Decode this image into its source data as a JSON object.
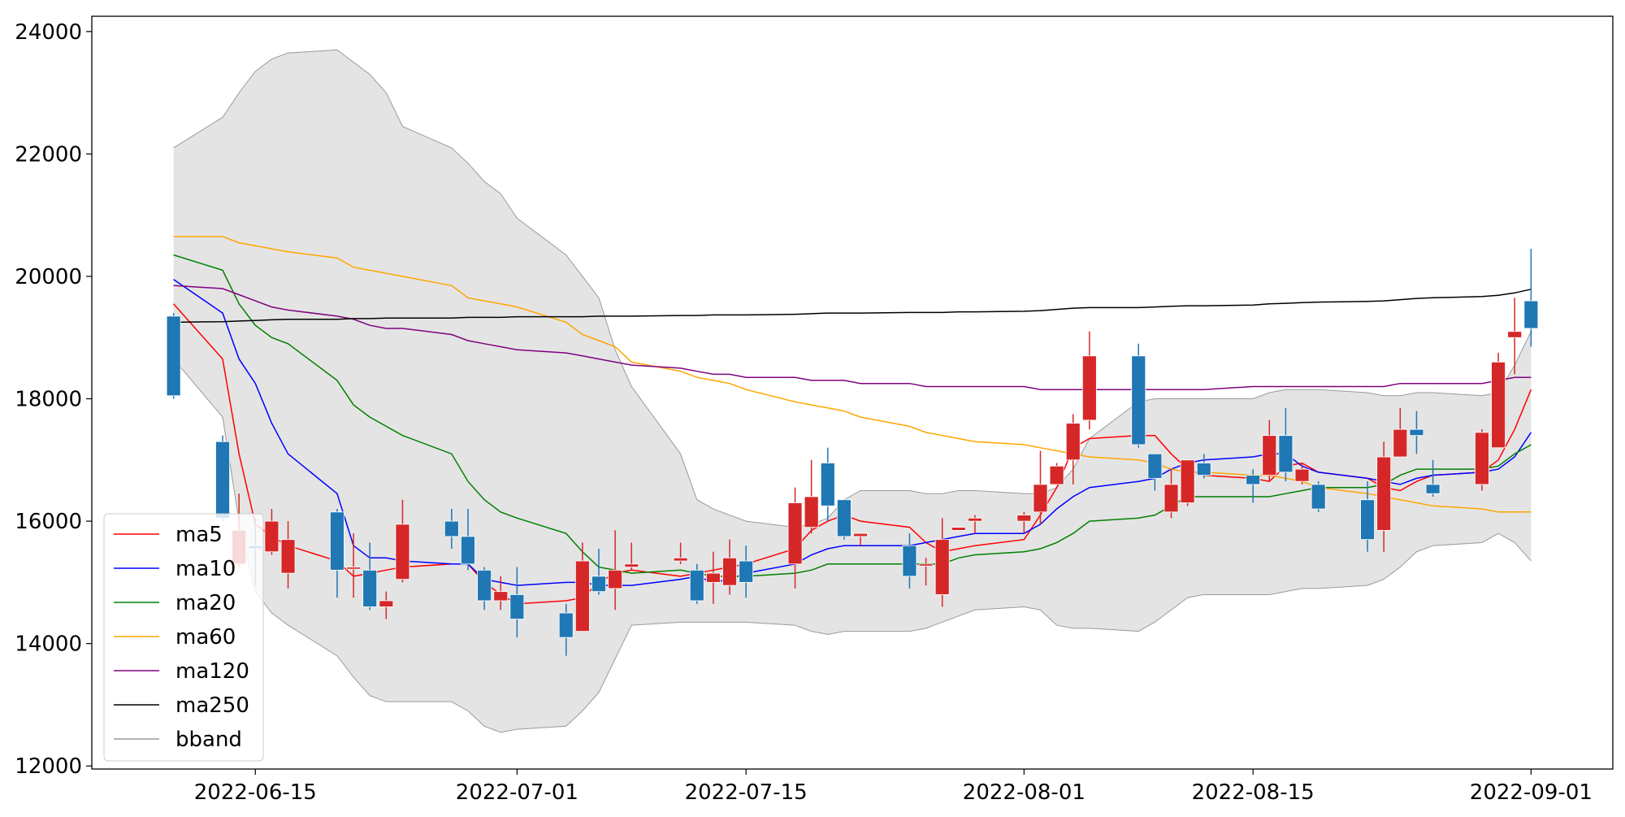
{
  "chart_data": {
    "type": "candlestick",
    "ylim": [
      11950,
      24250
    ],
    "y_ticks": [
      12000,
      14000,
      16000,
      18000,
      20000,
      22000,
      24000
    ],
    "x_ticks": [
      {
        "date": "2022-06-15",
        "label": "2022-06-15"
      },
      {
        "date": "2022-07-01",
        "label": "2022-07-01"
      },
      {
        "date": "2022-07-15",
        "label": "2022-07-15"
      },
      {
        "date": "2022-08-01",
        "label": "2022-08-01"
      },
      {
        "date": "2022-08-15",
        "label": "2022-08-15"
      },
      {
        "date": "2022-09-01",
        "label": "2022-09-01"
      }
    ],
    "x_range": [
      "2022-06-05",
      "2022-09-06"
    ],
    "grid": false,
    "legend_position": "lower-left",
    "colors": {
      "up": "#d62728",
      "down": "#1f77b4",
      "band_fill": "#e4e4e4",
      "band_edge": "#9a9a9a"
    },
    "dates": [
      "2022-06-10",
      "2022-06-13",
      "2022-06-14",
      "2022-06-15",
      "2022-06-16",
      "2022-06-17",
      "2022-06-20",
      "2022-06-21",
      "2022-06-22",
      "2022-06-23",
      "2022-06-24",
      "2022-06-27",
      "2022-06-28",
      "2022-06-29",
      "2022-06-30",
      "2022-07-01",
      "2022-07-04",
      "2022-07-05",
      "2022-07-06",
      "2022-07-07",
      "2022-07-08",
      "2022-07-11",
      "2022-07-12",
      "2022-07-13",
      "2022-07-14",
      "2022-07-15",
      "2022-07-18",
      "2022-07-19",
      "2022-07-20",
      "2022-07-21",
      "2022-07-22",
      "2022-07-25",
      "2022-07-26",
      "2022-07-27",
      "2022-07-28",
      "2022-07-29",
      "2022-08-01",
      "2022-08-02",
      "2022-08-03",
      "2022-08-04",
      "2022-08-05",
      "2022-08-08",
      "2022-08-09",
      "2022-08-10",
      "2022-08-11",
      "2022-08-12",
      "2022-08-15",
      "2022-08-16",
      "2022-08-17",
      "2022-08-18",
      "2022-08-19",
      "2022-08-22",
      "2022-08-23",
      "2022-08-24",
      "2022-08-25",
      "2022-08-26",
      "2022-08-29",
      "2022-08-30",
      "2022-08-31",
      "2022-09-01"
    ],
    "ohlc": [
      [
        19350,
        19400,
        18000,
        18050
      ],
      [
        17300,
        17400,
        16000,
        16050
      ],
      [
        15300,
        16450,
        15250,
        15850
      ],
      [
        15600,
        16050,
        14950,
        15550
      ],
      [
        15500,
        16200,
        15450,
        16000
      ],
      [
        15150,
        16000,
        14900,
        15700
      ],
      [
        16150,
        16200,
        14750,
        15200
      ],
      [
        15250,
        15800,
        14750,
        15250
      ],
      [
        15200,
        15650,
        14550,
        14600
      ],
      [
        14600,
        14850,
        14400,
        14700
      ],
      [
        15050,
        16350,
        15000,
        15950
      ],
      [
        16000,
        16200,
        15550,
        15750
      ],
      [
        15750,
        16200,
        15200,
        15300
      ],
      [
        15200,
        15250,
        14550,
        14700
      ],
      [
        14700,
        15100,
        14550,
        14850
      ],
      [
        14800,
        15250,
        14100,
        14400
      ],
      [
        14500,
        14650,
        13800,
        14100
      ],
      [
        14200,
        15650,
        14200,
        15350
      ],
      [
        15100,
        15550,
        14800,
        14850
      ],
      [
        14900,
        15850,
        14550,
        15200
      ],
      [
        15250,
        15650,
        15200,
        15300
      ],
      [
        15350,
        15650,
        15300,
        15400
      ],
      [
        15200,
        15300,
        14650,
        14700
      ],
      [
        15000,
        15500,
        14650,
        15150
      ],
      [
        14950,
        15700,
        14800,
        15400
      ],
      [
        15350,
        15600,
        14750,
        15000
      ],
      [
        15300,
        16550,
        14900,
        16300
      ],
      [
        15900,
        17000,
        15800,
        16400
      ],
      [
        16950,
        17200,
        16000,
        16250
      ],
      [
        16350,
        16350,
        15700,
        15750
      ],
      [
        15750,
        15700,
        15600,
        15800
      ],
      [
        15600,
        15800,
        14900,
        15100
      ],
      [
        15300,
        15400,
        14950,
        15300
      ],
      [
        14800,
        16050,
        14600,
        15700
      ],
      [
        15850,
        15900,
        15850,
        15900
      ],
      [
        16000,
        16100,
        15800,
        16050
      ],
      [
        16000,
        16150,
        15800,
        16100
      ],
      [
        16150,
        17150,
        15950,
        16600
      ],
      [
        16600,
        16950,
        16600,
        16900
      ],
      [
        17000,
        17750,
        16600,
        17600
      ],
      [
        17650,
        19100,
        17500,
        18700
      ],
      [
        18700,
        18900,
        17200,
        17250
      ],
      [
        17100,
        17100,
        16500,
        16700
      ],
      [
        16150,
        16850,
        16050,
        16600
      ],
      [
        16300,
        17000,
        16250,
        17000
      ],
      [
        16950,
        17100,
        16700,
        16750
      ],
      [
        16750,
        16850,
        16300,
        16600
      ],
      [
        16750,
        17650,
        16650,
        17400
      ],
      [
        17400,
        17850,
        16650,
        16800
      ],
      [
        16650,
        16950,
        16600,
        16850
      ],
      [
        16600,
        16650,
        16150,
        16200
      ],
      [
        16350,
        16650,
        15500,
        15700
      ],
      [
        15850,
        17300,
        15500,
        17050
      ],
      [
        17050,
        17850,
        17050,
        17500
      ],
      [
        17500,
        17800,
        17100,
        17400
      ],
      [
        16600,
        17000,
        16400,
        16450
      ],
      [
        16600,
        17500,
        16500,
        17450
      ],
      [
        17200,
        18750,
        17200,
        18600
      ],
      [
        19000,
        19650,
        18400,
        19100
      ],
      [
        19600,
        20450,
        18850,
        19150
      ]
    ],
    "series": [
      {
        "name": "ma5",
        "color": "#ff0000",
        "values": [
          19550,
          18650,
          17100,
          15950,
          15750,
          15600,
          15350,
          15100,
          15150,
          15200,
          15250,
          15300,
          15300,
          15000,
          14800,
          14650,
          14700,
          14750,
          15000,
          15150,
          15200,
          15100,
          15150,
          15200,
          15250,
          15300,
          15550,
          15850,
          16000,
          16100,
          16000,
          15900,
          15650,
          15500,
          15550,
          15600,
          15700,
          16100,
          16550,
          17200,
          17350,
          17400,
          17400,
          17100,
          16850,
          16750,
          16700,
          16650,
          16900,
          16950,
          16800,
          16700,
          16550,
          16500,
          16650,
          16750,
          16800,
          17000,
          17500,
          18150
        ]
      },
      {
        "name": "ma10",
        "color": "#0000ff",
        "values": [
          19950,
          19400,
          18650,
          18250,
          17600,
          17100,
          16450,
          15600,
          15400,
          15400,
          15350,
          15300,
          15300,
          15050,
          15000,
          14950,
          15000,
          15000,
          14950,
          14950,
          14950,
          15050,
          15100,
          15000,
          15050,
          15150,
          15300,
          15450,
          15550,
          15600,
          15600,
          15600,
          15650,
          15700,
          15750,
          15800,
          15800,
          15950,
          16200,
          16400,
          16550,
          16650,
          16700,
          16850,
          16950,
          17000,
          17050,
          17100,
          17100,
          16900,
          16800,
          16700,
          16650,
          16600,
          16700,
          16750,
          16800,
          16850,
          17050,
          17450
        ]
      },
      {
        "name": "ma20",
        "color": "#008000",
        "values": [
          20350,
          20100,
          19550,
          19200,
          19000,
          18900,
          18300,
          17900,
          17700,
          17550,
          17400,
          17100,
          16650,
          16350,
          16150,
          16050,
          15800,
          15500,
          15250,
          15200,
          15150,
          15200,
          15150,
          15100,
          15100,
          15100,
          15150,
          15200,
          15300,
          15300,
          15300,
          15300,
          15300,
          15300,
          15400,
          15450,
          15500,
          15550,
          15650,
          15800,
          16000,
          16050,
          16100,
          16250,
          16400,
          16400,
          16400,
          16400,
          16450,
          16500,
          16550,
          16550,
          16600,
          16750,
          16850,
          16850,
          16850,
          16900,
          17100,
          17250
        ]
      },
      {
        "name": "ma60",
        "color": "#ffa500",
        "values": [
          20650,
          20650,
          20550,
          20500,
          20450,
          20400,
          20300,
          20150,
          20100,
          20050,
          20000,
          19850,
          19650,
          19600,
          19550,
          19500,
          19250,
          19050,
          18950,
          18850,
          18600,
          18450,
          18350,
          18300,
          18250,
          18150,
          17950,
          17900,
          17850,
          17800,
          17700,
          17550,
          17450,
          17400,
          17350,
          17300,
          17250,
          17200,
          17150,
          17100,
          17050,
          17000,
          16950,
          16850,
          16800,
          16800,
          16750,
          16750,
          16700,
          16650,
          16550,
          16450,
          16400,
          16350,
          16300,
          16250,
          16200,
          16150,
          16150,
          16150
        ]
      },
      {
        "name": "ma120",
        "color": "#800080",
        "values": [
          19850,
          19800,
          19700,
          19600,
          19500,
          19450,
          19350,
          19300,
          19200,
          19150,
          19150,
          19050,
          18950,
          18900,
          18850,
          18800,
          18750,
          18700,
          18650,
          18600,
          18550,
          18500,
          18450,
          18400,
          18400,
          18350,
          18350,
          18300,
          18300,
          18300,
          18250,
          18250,
          18200,
          18200,
          18200,
          18200,
          18200,
          18150,
          18150,
          18150,
          18150,
          18150,
          18150,
          18150,
          18150,
          18150,
          18200,
          18200,
          18200,
          18200,
          18200,
          18200,
          18200,
          18250,
          18250,
          18250,
          18250,
          18300,
          18350,
          18350
        ]
      },
      {
        "name": "ma250",
        "color": "#000000",
        "values": [
          19250,
          19260,
          19270,
          19280,
          19290,
          19300,
          19300,
          19310,
          19310,
          19320,
          19320,
          19320,
          19330,
          19330,
          19330,
          19340,
          19340,
          19340,
          19350,
          19350,
          19350,
          19360,
          19360,
          19370,
          19370,
          19370,
          19380,
          19390,
          19400,
          19400,
          19400,
          19410,
          19410,
          19410,
          19420,
          19420,
          19430,
          19440,
          19460,
          19480,
          19490,
          19490,
          19500,
          19510,
          19520,
          19520,
          19530,
          19550,
          19560,
          19570,
          19580,
          19590,
          19600,
          19620,
          19640,
          19650,
          19670,
          19690,
          19730,
          19790
        ]
      }
    ],
    "bband": {
      "name": "bband",
      "upper": [
        22100,
        22600,
        23000,
        23350,
        23550,
        23650,
        23700,
        23500,
        23300,
        23000,
        22450,
        22100,
        21850,
        21550,
        21350,
        20950,
        20350,
        20000,
        19650,
        18800,
        18200,
        17100,
        16350,
        16200,
        16100,
        16000,
        15900,
        15950,
        16050,
        16350,
        16500,
        16500,
        16450,
        16450,
        16500,
        16500,
        16450,
        16450,
        16550,
        16850,
        17350,
        17950,
        18000,
        18000,
        18000,
        18000,
        18000,
        18100,
        18150,
        18150,
        18150,
        18100,
        18050,
        18050,
        18100,
        18100,
        18050,
        18100,
        18550,
        19100
      ],
      "lower": [
        18650,
        17700,
        16000,
        14850,
        14500,
        14300,
        13800,
        13450,
        13150,
        13050,
        13050,
        13050,
        12900,
        12650,
        12550,
        12600,
        12650,
        12900,
        13200,
        13750,
        14300,
        14350,
        14350,
        14350,
        14350,
        14350,
        14300,
        14200,
        14150,
        14200,
        14200,
        14200,
        14250,
        14350,
        14450,
        14550,
        14600,
        14550,
        14300,
        14250,
        14250,
        14200,
        14350,
        14550,
        14750,
        14800,
        14800,
        14800,
        14850,
        14900,
        14900,
        14950,
        15050,
        15250,
        15500,
        15600,
        15650,
        15800,
        15650,
        15350
      ]
    },
    "legend": [
      "ma5",
      "ma10",
      "ma20",
      "ma60",
      "ma120",
      "ma250",
      "bband"
    ]
  }
}
